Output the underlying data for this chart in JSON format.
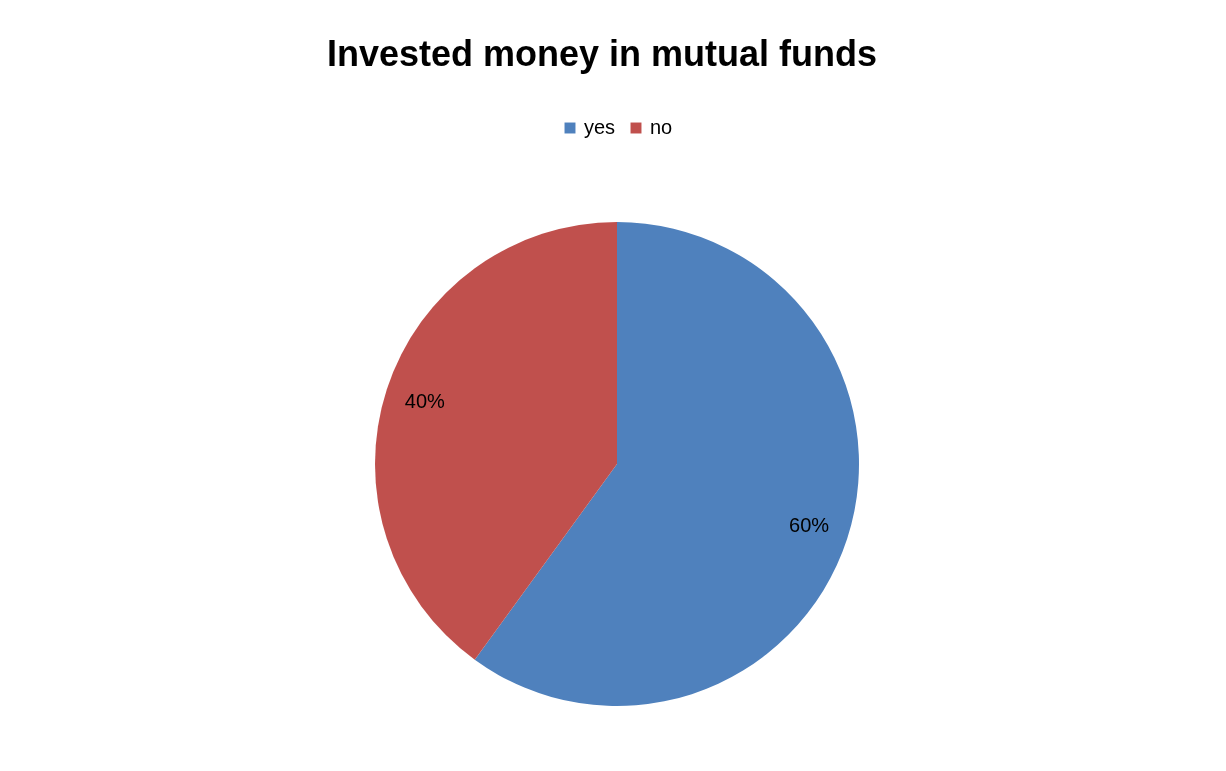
{
  "chart_data": {
    "type": "pie",
    "title": "Invested money in mutual funds",
    "categories": [
      "yes",
      "no"
    ],
    "values": [
      60,
      40
    ],
    "colors": [
      "#4f81bd",
      "#c0504d"
    ],
    "value_labels": [
      "60%",
      "40%"
    ],
    "legend": "top"
  }
}
